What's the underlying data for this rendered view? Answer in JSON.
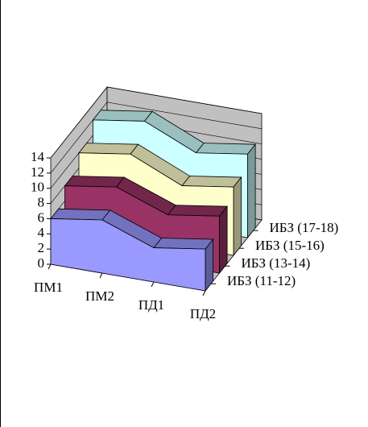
{
  "chart_data": {
    "type": "area3d",
    "categories": [
      "ПМ1",
      "ПМ2",
      "ПД1",
      "ПД2"
    ],
    "series": [
      {
        "name": "ИБЗ (11-12)",
        "color": "#9999ff",
        "values": [
          6,
          7,
          4.5,
          5.5
        ]
      },
      {
        "name": "ИБЗ (13-14)",
        "color": "#993366",
        "values": [
          8,
          9,
          6.5,
          7.5
        ]
      },
      {
        "name": "ИБЗ (15-16)",
        "color": "#ffffcc",
        "values": [
          10,
          11,
          8,
          9
        ]
      },
      {
        "name": "ИБЗ (17-18)",
        "color": "#ccffff",
        "values": [
          12,
          13,
          10,
          11
        ]
      }
    ],
    "ylim": [
      0,
      14
    ],
    "yticks": [
      0,
      2,
      4,
      6,
      8,
      10,
      12,
      14
    ],
    "grid": true,
    "wall_color": "#c0c0c0"
  }
}
